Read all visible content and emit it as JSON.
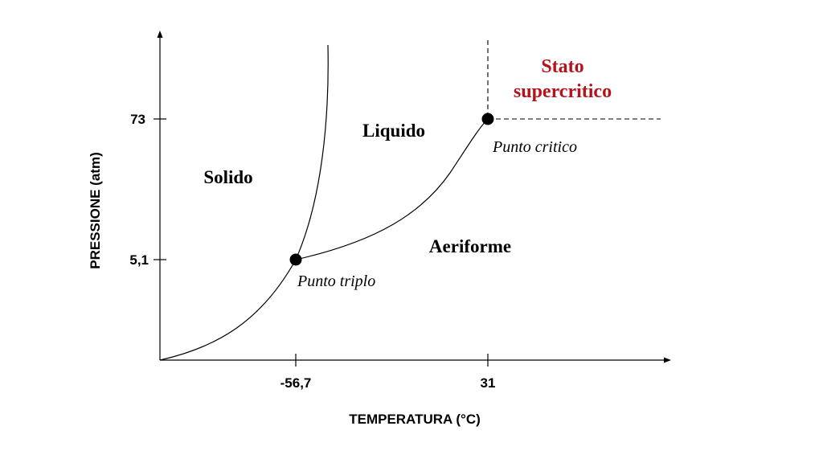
{
  "axes": {
    "x_title": "TEMPERATURA (°C)",
    "y_title": "PRESSIONE (atm)",
    "x_ticks": [
      "-56,7",
      "31"
    ],
    "y_ticks": [
      "73",
      "5,1"
    ]
  },
  "regions": {
    "solid": "Solido",
    "liquid": "Liquido",
    "gas": "Aeriforme",
    "supercritical_line1": "Stato",
    "supercritical_line2": "supercritico"
  },
  "points": {
    "triple": "Punto triplo",
    "critical": "Punto critico"
  },
  "colors": {
    "supercritical": "#b5121b",
    "ink": "#000000"
  }
}
